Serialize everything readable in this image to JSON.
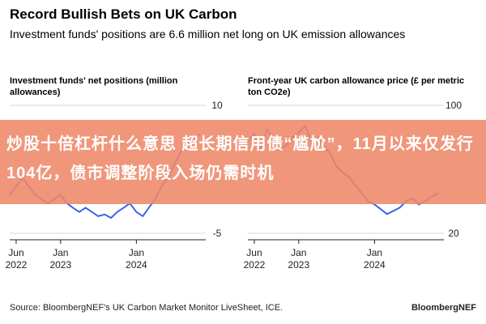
{
  "header": {
    "title": "Record Bullish Bets on UK Carbon",
    "subtitle": "Investment funds' positions are 6.6 million net long on UK emission allowances"
  },
  "banner": {
    "text": "炒股十倍杠杆什么意思 超长期信用债“尴尬”，11月以来仅发行104亿，债市调整阶段入场仍需时机"
  },
  "footer": {
    "source": "Source: BloombergNEF's UK Carbon Market Monitor LiveSheet, ICE.",
    "brand": "BloombergNEF"
  },
  "colors": {
    "series": "#3d63e8",
    "axis": "#222222",
    "grid": "#d9d9d9",
    "banner": "#ee8769"
  },
  "chart_data": [
    {
      "type": "line",
      "title": "Investment funds' net positions (million allowances)",
      "ylim": [
        -5,
        10
      ],
      "yticks": [
        -5,
        10
      ],
      "ytick_labels": [
        "-5",
        "10"
      ],
      "xlim": [
        "2022-05-01",
        "2024-11-30"
      ],
      "xticks": [
        "2022-06-01",
        "2023-01-01",
        "2024-01-01"
      ],
      "xtick_labels": [
        [
          "Jun",
          "2022"
        ],
        [
          "Jan",
          "2023"
        ],
        [
          "Jan",
          "2024"
        ]
      ],
      "series": [
        {
          "x": [
            "2022-05-01",
            "2022-06-01",
            "2022-07-01",
            "2022-08-01",
            "2022-09-01",
            "2022-10-01",
            "2022-11-01",
            "2022-12-01",
            "2023-01-01",
            "2023-02-01",
            "2023-03-01",
            "2023-04-01",
            "2023-05-01",
            "2023-06-01",
            "2023-07-01",
            "2023-08-01",
            "2023-09-01",
            "2023-10-01",
            "2023-11-01",
            "2023-12-01",
            "2024-01-01",
            "2024-02-01",
            "2024-03-01",
            "2024-04-01",
            "2024-05-01",
            "2024-06-01",
            "2024-07-01",
            "2024-08-01",
            "2024-09-01",
            "2024-10-01",
            "2024-11-01"
          ],
          "values": [
            -0.5,
            0.5,
            1.5,
            0.5,
            -0.5,
            -1.0,
            -1.5,
            -1.0,
            -0.5,
            -1.5,
            -2.0,
            -2.5,
            -2.0,
            -2.5,
            -3.0,
            -2.8,
            -3.2,
            -2.5,
            -2.0,
            -1.5,
            -2.5,
            -3.0,
            -2.0,
            -1.0,
            0.5,
            1.5,
            3.0,
            4.5,
            5.5,
            6.0,
            6.6
          ]
        }
      ]
    },
    {
      "type": "line",
      "title": "Front-year UK carbon allowance price (£ per metric ton CO2e)",
      "ylim": [
        20,
        100
      ],
      "yticks": [
        20,
        100
      ],
      "ytick_labels": [
        "20",
        "100"
      ],
      "xlim": [
        "2022-05-01",
        "2024-11-30"
      ],
      "xticks": [
        "2022-06-01",
        "2023-01-01",
        "2024-01-01"
      ],
      "xtick_labels": [
        [
          "Jun",
          "2022"
        ],
        [
          "Jan",
          "2023"
        ],
        [
          "Jan",
          "2024"
        ]
      ],
      "series": [
        {
          "x": [
            "2022-05-01",
            "2022-06-01",
            "2022-07-01",
            "2022-08-01",
            "2022-09-01",
            "2022-10-01",
            "2022-11-01",
            "2022-12-01",
            "2023-01-01",
            "2023-02-01",
            "2023-03-01",
            "2023-04-01",
            "2023-05-01",
            "2023-06-01",
            "2023-07-01",
            "2023-08-01",
            "2023-09-01",
            "2023-10-01",
            "2023-11-01",
            "2023-12-01",
            "2024-01-01",
            "2024-02-01",
            "2024-03-01",
            "2024-04-01",
            "2024-05-01",
            "2024-06-01",
            "2024-07-01",
            "2024-08-01",
            "2024-09-01",
            "2024-10-01",
            "2024-11-01"
          ],
          "values": [
            78,
            82,
            72,
            85,
            78,
            72,
            75,
            80,
            83,
            87,
            78,
            80,
            75,
            70,
            62,
            58,
            55,
            50,
            45,
            40,
            38,
            35,
            32,
            34,
            36,
            40,
            42,
            38,
            40,
            43,
            45
          ]
        }
      ]
    }
  ]
}
